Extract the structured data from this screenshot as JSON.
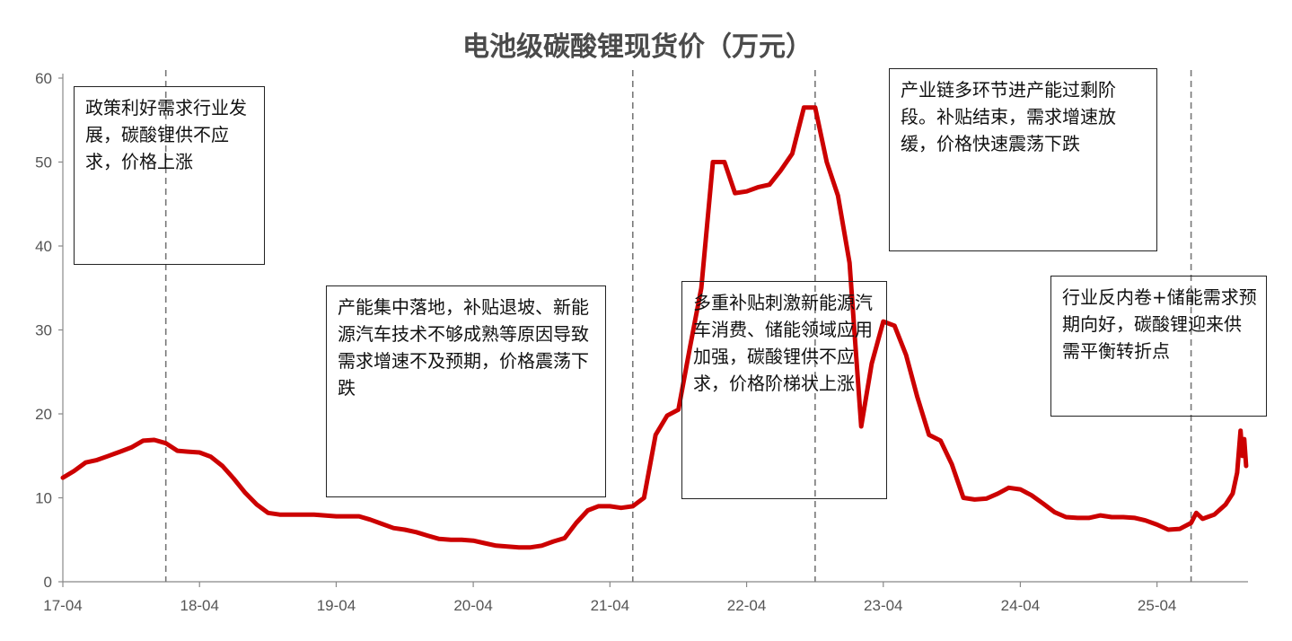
{
  "colors": {
    "line": "#cc0000",
    "axis": "#888888",
    "divider": "#777777"
  },
  "chart_data": {
    "type": "line",
    "title": "电池级碳酸锂现货价（万元）",
    "ylim": [
      0,
      60
    ],
    "yticks": [
      0,
      10,
      20,
      30,
      40,
      50,
      60
    ],
    "xlim": [
      "2017-04",
      "2025-11"
    ],
    "xticks": [
      "17-04",
      "18-04",
      "19-04",
      "20-04",
      "21-04",
      "22-04",
      "23-04",
      "24-04",
      "25-04"
    ],
    "grid": false,
    "dividers": [
      "2018-01",
      "2021-06",
      "2022-10",
      "2025-07"
    ],
    "series": [
      {
        "points": [
          [
            "2017-04-01",
            12.4
          ],
          [
            "2017-05-01",
            13.2
          ],
          [
            "2017-06-01",
            14.2
          ],
          [
            "2017-07-01",
            14.5
          ],
          [
            "2017-08-01",
            15.0
          ],
          [
            "2017-09-01",
            15.5
          ],
          [
            "2017-10-01",
            16.0
          ],
          [
            "2017-11-01",
            16.8
          ],
          [
            "2017-12-01",
            16.9
          ],
          [
            "2018-01-01",
            16.5
          ],
          [
            "2018-02-01",
            15.6
          ],
          [
            "2018-03-01",
            15.5
          ],
          [
            "2018-04-01",
            15.4
          ],
          [
            "2018-05-01",
            14.9
          ],
          [
            "2018-06-01",
            13.8
          ],
          [
            "2018-07-01",
            12.3
          ],
          [
            "2018-08-01",
            10.6
          ],
          [
            "2018-09-01",
            9.2
          ],
          [
            "2018-10-01",
            8.2
          ],
          [
            "2018-11-01",
            8.0
          ],
          [
            "2018-12-01",
            8.0
          ],
          [
            "2019-02-01",
            8.0
          ],
          [
            "2019-04-01",
            7.8
          ],
          [
            "2019-06-01",
            7.8
          ],
          [
            "2019-07-01",
            7.4
          ],
          [
            "2019-08-01",
            6.9
          ],
          [
            "2019-09-01",
            6.4
          ],
          [
            "2019-10-01",
            6.2
          ],
          [
            "2019-11-01",
            5.9
          ],
          [
            "2019-12-01",
            5.5
          ],
          [
            "2020-01-01",
            5.1
          ],
          [
            "2020-02-01",
            5.0
          ],
          [
            "2020-03-01",
            5.0
          ],
          [
            "2020-04-01",
            4.9
          ],
          [
            "2020-05-01",
            4.6
          ],
          [
            "2020-06-01",
            4.3
          ],
          [
            "2020-07-01",
            4.2
          ],
          [
            "2020-08-01",
            4.1
          ],
          [
            "2020-09-01",
            4.1
          ],
          [
            "2020-10-01",
            4.3
          ],
          [
            "2020-11-01",
            4.8
          ],
          [
            "2020-12-01",
            5.2
          ],
          [
            "2021-01-01",
            7.0
          ],
          [
            "2021-02-01",
            8.5
          ],
          [
            "2021-03-01",
            9.0
          ],
          [
            "2021-04-01",
            9.0
          ],
          [
            "2021-05-01",
            8.8
          ],
          [
            "2021-06-01",
            9.0
          ],
          [
            "2021-07-01",
            10.0
          ],
          [
            "2021-08-01",
            17.5
          ],
          [
            "2021-09-01",
            19.8
          ],
          [
            "2021-10-01",
            20.5
          ],
          [
            "2021-11-01",
            28.0
          ],
          [
            "2021-12-01",
            35.0
          ],
          [
            "2022-01-01",
            50.0
          ],
          [
            "2022-02-01",
            50.0
          ],
          [
            "2022-03-01",
            46.3
          ],
          [
            "2022-04-01",
            46.5
          ],
          [
            "2022-05-01",
            47.0
          ],
          [
            "2022-06-01",
            47.3
          ],
          [
            "2022-07-01",
            49.0
          ],
          [
            "2022-08-01",
            51.0
          ],
          [
            "2022-09-01",
            56.5
          ],
          [
            "2022-10-01",
            56.5
          ],
          [
            "2022-11-01",
            50.0
          ],
          [
            "2022-12-01",
            46.0
          ],
          [
            "2023-01-01",
            38.0
          ],
          [
            "2023-02-01",
            18.5
          ],
          [
            "2023-03-01",
            26.0
          ],
          [
            "2023-04-01",
            31.0
          ],
          [
            "2023-05-01",
            30.5
          ],
          [
            "2023-06-01",
            27.0
          ],
          [
            "2023-07-01",
            22.0
          ],
          [
            "2023-08-01",
            17.5
          ],
          [
            "2023-09-01",
            16.8
          ],
          [
            "2023-10-01",
            14.0
          ],
          [
            "2023-11-01",
            10.0
          ],
          [
            "2023-12-01",
            9.8
          ],
          [
            "2024-01-01",
            9.9
          ],
          [
            "2024-02-01",
            10.5
          ],
          [
            "2024-03-01",
            11.2
          ],
          [
            "2024-04-01",
            11.0
          ],
          [
            "2024-05-01",
            10.3
          ],
          [
            "2024-06-01",
            9.3
          ],
          [
            "2024-07-01",
            8.3
          ],
          [
            "2024-08-01",
            7.7
          ],
          [
            "2024-09-01",
            7.6
          ],
          [
            "2024-10-01",
            7.6
          ],
          [
            "2024-11-01",
            7.9
          ],
          [
            "2024-12-01",
            7.7
          ],
          [
            "2025-01-01",
            7.7
          ],
          [
            "2025-02-01",
            7.6
          ],
          [
            "2025-03-01",
            7.3
          ],
          [
            "2025-04-01",
            6.8
          ],
          [
            "2025-05-01",
            6.2
          ],
          [
            "2025-06-01",
            6.3
          ],
          [
            "2025-07-01",
            7.0
          ],
          [
            "2025-07-15",
            8.2
          ],
          [
            "2025-08-01",
            7.5
          ],
          [
            "2025-09-01",
            8.0
          ],
          [
            "2025-10-01",
            9.2
          ],
          [
            "2025-10-20",
            10.5
          ],
          [
            "2025-11-01",
            13.0
          ],
          [
            "2025-11-10",
            18.0
          ],
          [
            "2025-11-15",
            15.0
          ],
          [
            "2025-11-20",
            17.0
          ],
          [
            "2025-11-25",
            13.8
          ]
        ]
      }
    ],
    "annotations": [
      "政策利好需求行业发展，碳酸锂供不应求，价格上涨",
      "产能集中落地，补贴退坡、新能源汽车技术不够成熟等原因导致需求增速不及预期，价格震荡下跌",
      "多重补贴刺激新能源汽车消费、储能领域应用加强，碳酸锂供不应求，价格阶梯状上涨",
      "产业链多环节进产能过剩阶段。补贴结束，需求增速放缓，价格快速震荡下跌",
      "行业反内卷+储能需求预期向好，碳酸锂迎来供需平衡转折点"
    ]
  }
}
